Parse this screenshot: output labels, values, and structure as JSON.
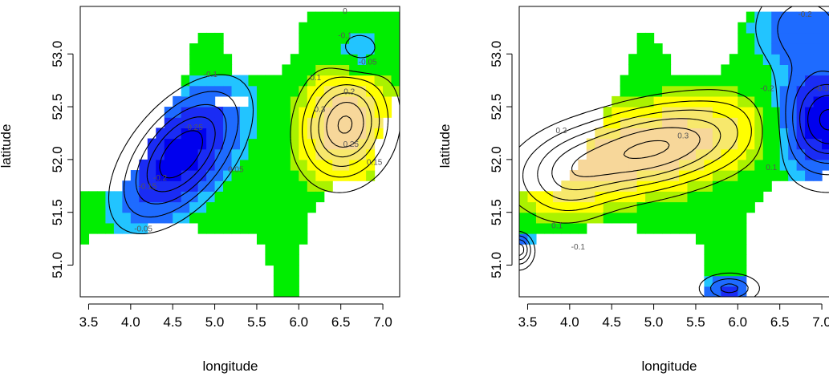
{
  "chart_data": [
    {
      "type": "heatmap",
      "title": "",
      "xlabel": "longitude",
      "ylabel": "latitude",
      "xlim": [
        3.4,
        7.2
      ],
      "ylim": [
        50.7,
        53.45
      ],
      "xticks": [
        "3.5",
        "4.0",
        "4.5",
        "5.0",
        "5.5",
        "6.0",
        "6.5",
        "7.0"
      ],
      "yticks": [
        "51.0",
        "51.5",
        "52.0",
        "52.5",
        "53.0"
      ],
      "grid": false,
      "colors": {
        "very_low": "#0000ee",
        "low": "#1e6bff",
        "mid_low": "#22c4ff",
        "near_zero": "#00ee00",
        "slightly_pos": "#aaf200",
        "mid_high": "#ffff00",
        "high": "#f7e86c",
        "very_high": "#f7d79a"
      },
      "features": [
        {
          "kind": "low",
          "x": 4.58,
          "y": 52.05,
          "value": -0.3
        },
        {
          "kind": "high",
          "x": 6.55,
          "y": 52.33,
          "value": 0.3
        },
        {
          "kind": "low",
          "x": 6.7,
          "y": 53.02,
          "value": -0.1
        }
      ],
      "contour_labels": [
        "0",
        "-0.1",
        "-0.05",
        "-0.1",
        "0.1",
        "0.2",
        "0.3",
        "0.25",
        "0.15",
        "-0.25",
        "-0.2",
        "-0.15",
        "0.05",
        "-0.05"
      ]
    },
    {
      "type": "heatmap",
      "title": "",
      "xlabel": "longitude",
      "ylabel": "latitude",
      "xlim": [
        3.4,
        7.2
      ],
      "ylim": [
        50.7,
        53.45
      ],
      "xticks": [
        "3.5",
        "4.0",
        "4.5",
        "5.0",
        "5.5",
        "6.0",
        "6.5",
        "7.0"
      ],
      "yticks": [
        "51.0",
        "51.5",
        "52.0",
        "52.5",
        "53.0"
      ],
      "grid": false,
      "colors": {
        "very_low": "#0000ee",
        "low": "#1e6bff",
        "mid_low": "#22c4ff",
        "near_zero": "#00ee00",
        "slightly_pos": "#aaf200",
        "mid_high": "#ffff00",
        "high": "#f7e86c",
        "very_high": "#f7d79a"
      },
      "features": [
        {
          "kind": "high",
          "x": 5.0,
          "y": 52.15,
          "value": 0.3
        },
        {
          "kind": "low",
          "x": 7.0,
          "y": 52.4,
          "value": -0.3
        },
        {
          "kind": "low",
          "x": 3.45,
          "y": 51.15,
          "value": -0.2
        }
      ],
      "contour_labels": [
        "-0.2",
        "0.2",
        "0.3",
        "-0.2",
        "0.1",
        "0.1",
        "-0.1",
        "-0.3"
      ]
    }
  ]
}
